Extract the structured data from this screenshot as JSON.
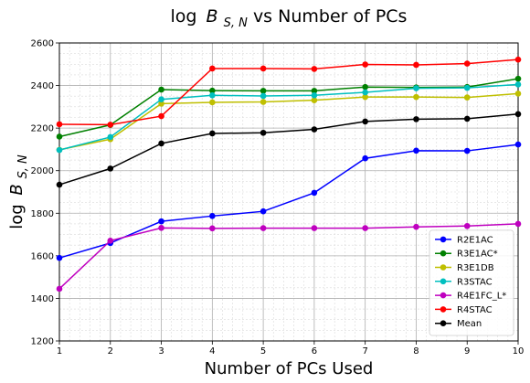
{
  "chart_data": {
    "type": "line",
    "title_prefix": "log",
    "title_var": "B",
    "title_sub": "S, N",
    "title_suffix": " vs Number of PCs",
    "xlabel": "Number of PCs Used",
    "ylabel_prefix": "log",
    "ylabel_var": "B",
    "ylabel_sub": "S, N",
    "xlim": [
      1,
      10
    ],
    "ylim": [
      1200,
      2600
    ],
    "x_ticks": [
      1,
      2,
      3,
      4,
      5,
      6,
      7,
      8,
      9,
      10
    ],
    "y_ticks": [
      1200,
      1400,
      1600,
      1800,
      2000,
      2200,
      2400,
      2600
    ],
    "grid": true,
    "minor_grid": true,
    "legend_position": "lower right",
    "x": [
      1,
      2,
      3,
      4,
      5,
      6,
      7,
      8,
      9,
      10
    ],
    "series": [
      {
        "name": "R2E1AC",
        "color": "#0000ff",
        "values": [
          1590,
          1660,
          1762,
          1787,
          1809,
          1896,
          2058,
          2094,
          2093,
          2123
        ]
      },
      {
        "name": "R3E1AC*",
        "color": "#008000",
        "values": [
          2160,
          2215,
          2381,
          2376,
          2375,
          2375,
          2393,
          2391,
          2393,
          2432
        ]
      },
      {
        "name": "R3E1DB",
        "color": "#bfbf00",
        "values": [
          2098,
          2148,
          2315,
          2321,
          2323,
          2331,
          2346,
          2346,
          2344,
          2362
        ]
      },
      {
        "name": "R3STAC",
        "color": "#00bfbf",
        "values": [
          2097,
          2158,
          2335,
          2354,
          2351,
          2354,
          2368,
          2387,
          2389,
          2405
        ]
      },
      {
        "name": "R4E1FC_L*",
        "color": "#bf00bf",
        "values": [
          1445,
          1671,
          1731,
          1729,
          1730,
          1730,
          1730,
          1736,
          1740,
          1750
        ]
      },
      {
        "name": "R4STAC",
        "color": "#ff0000",
        "values": [
          2218,
          2216,
          2256,
          2480,
          2480,
          2478,
          2499,
          2497,
          2503,
          2522
        ]
      },
      {
        "name": "Mean",
        "color": "#000000",
        "values": [
          1934,
          2010,
          2128,
          2175,
          2178,
          2194,
          2231,
          2242,
          2244,
          2266
        ]
      }
    ]
  }
}
